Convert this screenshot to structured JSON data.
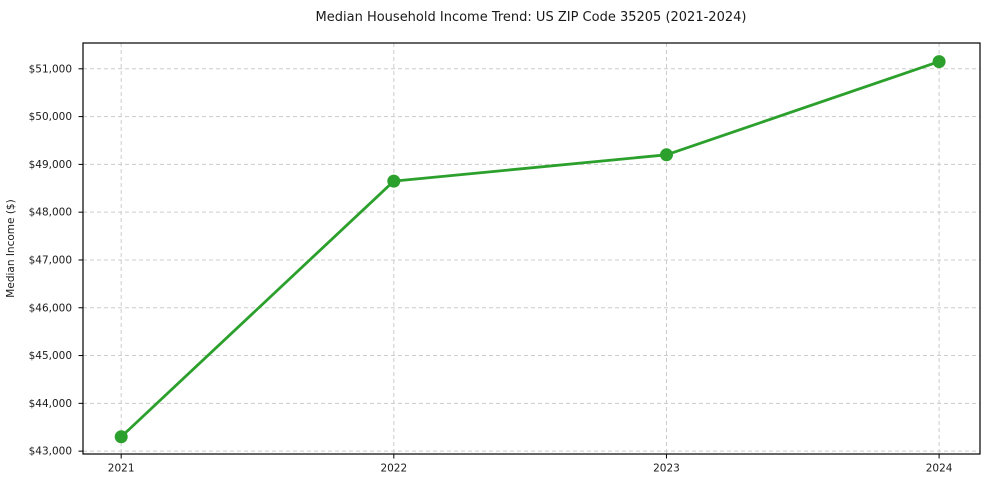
{
  "chart": {
    "title": "Median Household Income Trend: US ZIP Code 35205 (2021-2024)"
  },
  "chart_data": {
    "type": "line",
    "title": "Median Household Income Trend: US ZIP Code 35205 (2021-2024)",
    "xlabel": "",
    "ylabel": "Median Income ($)",
    "x": [
      2021,
      2022,
      2023,
      2024
    ],
    "values": [
      43300,
      48650,
      49200,
      51150
    ],
    "x_tick_labels": [
      "2021",
      "2022",
      "2023",
      "2024"
    ],
    "y_ticks": [
      43000,
      44000,
      45000,
      46000,
      47000,
      48000,
      49000,
      50000,
      51000
    ],
    "y_tick_labels": [
      "$43,000",
      "$44,000",
      "$45,000",
      "$46,000",
      "$47,000",
      "$48,000",
      "$49,000",
      "$50,000",
      "$51,000"
    ],
    "xlim": [
      2020.86,
      2024.15
    ],
    "ylim": [
      42940,
      51540
    ],
    "grid": true,
    "grid_style": "dashed",
    "legend": "none",
    "line_color": "#2ca02c",
    "marker_color": "#2ca02c",
    "grid_color": "#cccccc",
    "spine_color": "#000000",
    "background_color": "#ffffff"
  }
}
